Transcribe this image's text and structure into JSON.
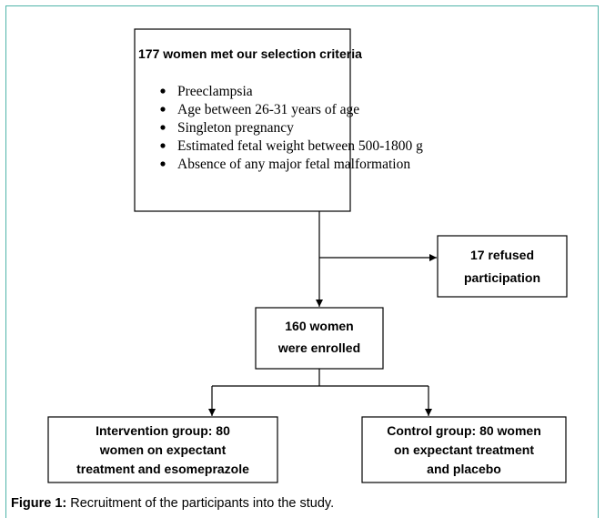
{
  "nodes": [
    {
      "title": "177 women met our selection criteria",
      "items": [
        "Preeclampsia",
        "Age between 26-31 years of age",
        "Singleton pregnancy",
        "Estimated fetal weight between 500-1800 g",
        "Absence of any major fetal malformation"
      ]
    },
    {
      "lines": [
        "17 refused",
        "participation"
      ]
    },
    {
      "lines": [
        "160 women",
        "were enrolled"
      ]
    },
    {
      "lines": [
        "Intervention group: 80",
        "women on expectant",
        "treatment and esomeprazole"
      ]
    },
    {
      "lines": [
        "Control group: 80 women",
        "on expectant treatment",
        "and placebo"
      ]
    }
  ],
  "caption": {
    "label": "Figure 1:",
    "text": "Recruitment of the participants into the study."
  }
}
